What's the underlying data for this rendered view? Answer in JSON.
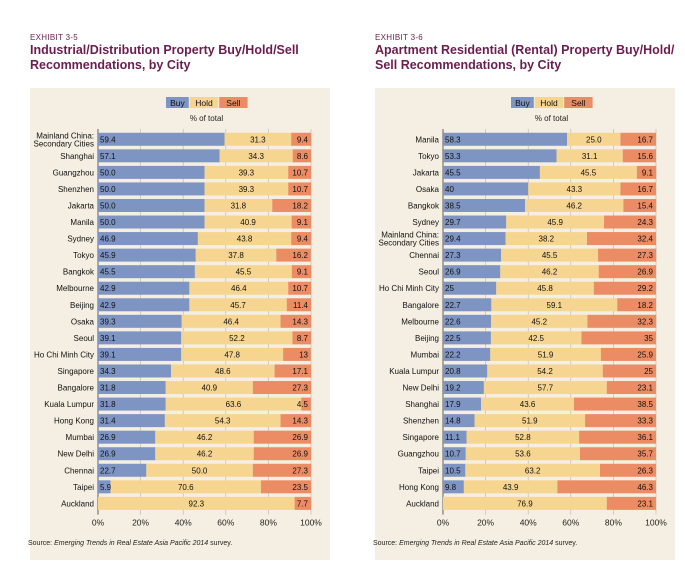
{
  "colors": {
    "buy": "#7e94c2",
    "hold": "#f6d591",
    "sell": "#ec8c64",
    "title": "#6b1d4f",
    "panel": "#f4efe2",
    "grid": "#b4b4b4"
  },
  "exhibits": [
    {
      "number": "EXHIBIT 3-5",
      "title": "Industrial/Distribution Property Buy/Hold/Sell Recommendations, by City",
      "source_prefix": "Source: ",
      "source_title": "Emerging Trends in Real Estate Asia Pacific 2014",
      "source_suffix": " survey."
    },
    {
      "number": "EXHIBIT 3-6",
      "title": "Apartment Residential (Rental) Property Buy/Hold/ Sell Recommendations, by City",
      "source_prefix": "Source: ",
      "source_title": "Emerging Trends in Real Estate Asia Pacific 2014",
      "source_suffix": " survey."
    }
  ],
  "chart_data": [
    {
      "type": "bar",
      "orientation": "horizontal",
      "stacked": true,
      "legend": [
        "Buy",
        "Hold",
        "Sell"
      ],
      "legend_placement": "top",
      "xlabel": "% of total",
      "xlim": [
        0,
        100
      ],
      "x_ticks": [
        "0%",
        "20%",
        "40%",
        "60%",
        "80%",
        "100%"
      ],
      "categories": [
        "Mainland China:\nSecondary Cities",
        "Shanghai",
        "Guangzhou",
        "Shenzhen",
        "Jakarta",
        "Manila",
        "Sydney",
        "Tokyo",
        "Bangkok",
        "Melbourne",
        "Beijing",
        "Osaka",
        "Seoul",
        "Ho Chi Minh City",
        "Singapore",
        "Bangalore",
        "Kuala Lumpur",
        "Hong Kong",
        "Mumbai",
        "New Delhi",
        "Chennai",
        "Taipei",
        "Auckland"
      ],
      "series": [
        {
          "name": "Buy",
          "values": [
            59.4,
            57.1,
            50.0,
            50.0,
            50.0,
            50.0,
            46.9,
            45.9,
            45.5,
            42.9,
            42.9,
            39.3,
            39.1,
            39.1,
            34.3,
            31.8,
            31.8,
            31.4,
            26.9,
            26.9,
            22.7,
            5.9,
            0
          ]
        },
        {
          "name": "Hold",
          "values": [
            31.3,
            34.3,
            39.3,
            39.3,
            31.8,
            40.9,
            43.8,
            37.8,
            45.5,
            46.4,
            45.7,
            46.4,
            52.2,
            47.8,
            48.6,
            40.9,
            63.6,
            54.3,
            46.2,
            46.2,
            50.0,
            70.6,
            92.3
          ]
        },
        {
          "name": "Sell",
          "values": [
            9.4,
            8.6,
            10.7,
            10.7,
            18.2,
            9.1,
            9.4,
            16.2,
            9.1,
            10.7,
            11.4,
            14.3,
            8.7,
            13,
            17.1,
            27.3,
            4.5,
            14.3,
            26.9,
            26.9,
            27.3,
            23.5,
            7.7
          ]
        }
      ],
      "labels": {
        "Buy": [
          "59.4",
          "57.1",
          "50.0",
          "50.0",
          "50.0",
          "50.0",
          "46.9",
          "45.9",
          "45.5",
          "42.9",
          "42.9",
          "39.3",
          "39.1",
          "39.1",
          "34.3",
          "31.8",
          "31.8",
          "31.4",
          "26.9",
          "26.9",
          "22.7",
          "5.9",
          "0"
        ],
        "Hold": [
          "31.3",
          "34.3",
          "39.3",
          "39.3",
          "31.8",
          "40.9",
          "43.8",
          "37.8",
          "45.5",
          "46.4",
          "45.7",
          "46.4",
          "52.2",
          "47.8",
          "48.6",
          "40.9",
          "63.6",
          "54.3",
          "46.2",
          "46.2",
          "50.0",
          "70.6",
          "92.3"
        ],
        "Sell": [
          "9.4",
          "8.6",
          "10.7",
          "10.7",
          "18.2",
          "9.1",
          "9.4",
          "16.2",
          "9.1",
          "10.7",
          "11.4",
          "14.3",
          "8.7",
          "13",
          "17.1",
          "27.3",
          "4.5",
          "14.3",
          "26.9",
          "26.9",
          "27.3",
          "23.5",
          "7.7"
        ]
      }
    },
    {
      "type": "bar",
      "orientation": "horizontal",
      "stacked": true,
      "legend": [
        "Buy",
        "Hold",
        "Sell"
      ],
      "legend_placement": "top",
      "xlabel": "% of total",
      "xlim": [
        0,
        100
      ],
      "x_ticks": [
        "0%",
        "20%",
        "40%",
        "60%",
        "80%",
        "100%"
      ],
      "categories": [
        "Manila",
        "Tokyo",
        "Jakarta",
        "Osaka",
        "Bangkok",
        "Sydney",
        "Mainland China:\nSecondary Cities",
        "Chennai",
        "Seoul",
        "Ho Chi Minh City",
        "Bangalore",
        "Melbourne",
        "Beijing",
        "Mumbai",
        "Kuala Lumpur",
        "New Delhi",
        "Shanghai",
        "Shenzhen",
        "Singapore",
        "Guangzhou",
        "Taipei",
        "Hong Kong",
        "Auckland"
      ],
      "series": [
        {
          "name": "Buy",
          "values": [
            58.3,
            53.3,
            45.5,
            40,
            38.5,
            29.7,
            29.4,
            27.3,
            26.9,
            25,
            22.7,
            22.6,
            22.5,
            22.2,
            20.8,
            19.2,
            17.9,
            14.8,
            11.1,
            10.7,
            10.5,
            9.8,
            0
          ]
        },
        {
          "name": "Hold",
          "values": [
            25.0,
            31.1,
            45.5,
            43.3,
            46.2,
            45.9,
            38.2,
            45.5,
            46.2,
            45.8,
            59.1,
            45.2,
            42.5,
            51.9,
            54.2,
            57.7,
            43.6,
            51.9,
            52.8,
            53.6,
            63.2,
            43.9,
            76.9
          ]
        },
        {
          "name": "Sell",
          "values": [
            16.7,
            15.6,
            9.1,
            16.7,
            15.4,
            24.3,
            32.4,
            27.3,
            26.9,
            29.2,
            18.2,
            32.3,
            35,
            25.9,
            25,
            23.1,
            38.5,
            33.3,
            36.1,
            35.7,
            26.3,
            46.3,
            23.1
          ]
        }
      ],
      "labels": {
        "Buy": [
          "58.3",
          "53.3",
          "45.5",
          "40",
          "38.5",
          "29.7",
          "29.4",
          "27.3",
          "26.9",
          "25",
          "22.7",
          "22.6",
          "22.5",
          "22.2",
          "20.8",
          "19.2",
          "17.9",
          "14.8",
          "11.1",
          "10.7",
          "10.5",
          "9.8",
          "0"
        ],
        "Hold": [
          "25.0",
          "31.1",
          "45.5",
          "43.3",
          "46.2",
          "45.9",
          "38.2",
          "45.5",
          "46.2",
          "45.8",
          "59.1",
          "45.2",
          "42.5",
          "51.9",
          "54.2",
          "57.7",
          "43.6",
          "51.9",
          "52.8",
          "53.6",
          "63.2",
          "43.9",
          "76.9"
        ],
        "Sell": [
          "16.7",
          "15.6",
          "9.1",
          "16.7",
          "15.4",
          "24.3",
          "32.4",
          "27.3",
          "26.9",
          "29.2",
          "18.2",
          "32.3",
          "35",
          "25.9",
          "25",
          "23.1",
          "38.5",
          "33.3",
          "36.1",
          "35.7",
          "26.3",
          "46.3",
          "23.1"
        ]
      }
    }
  ]
}
